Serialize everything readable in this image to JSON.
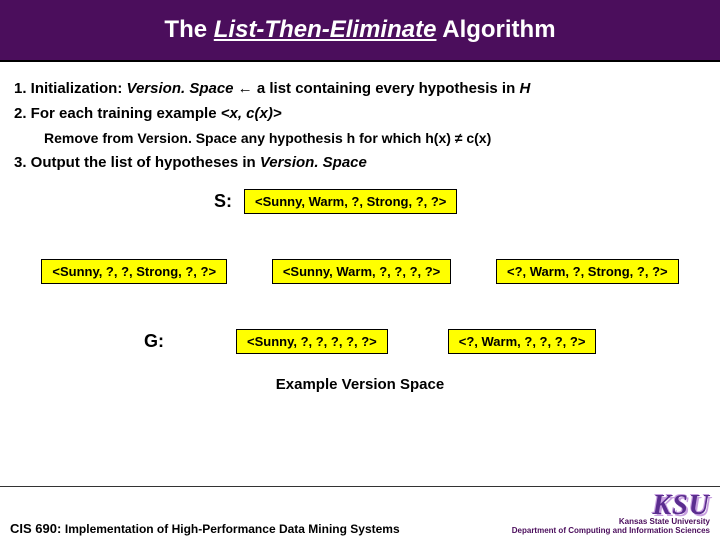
{
  "title": {
    "prefix": "The ",
    "underlined": "List-Then-Eliminate",
    "suffix": " Algorithm"
  },
  "steps": {
    "s1_label": "1. Initialization: ",
    "s1_vs": "Version. Space",
    "s1_arrow": " ← ",
    "s1_rest": "a list containing every hypothesis in ",
    "s1_h": "H",
    "s2_label": "2. For each training example ",
    "s2_tuple": "<x, c(x)>",
    "s2_sub_a": "Remove from ",
    "s2_sub_vs": "Version. Space",
    "s2_sub_b": " any hypothesis ",
    "s2_sub_h": "h",
    "s2_sub_c": " for which ",
    "s2_sub_d": "h(x) ≠ c(x)",
    "s3_label": "3. Output the list of hypotheses in ",
    "s3_vs": "Version. Space"
  },
  "labels": {
    "s": "S:",
    "g": "G:",
    "example": "Example Version Space"
  },
  "boxes": {
    "s_box": "<Sunny, Warm, ?, Strong, ?, ?>",
    "m1": "<Sunny, ?, ?, Strong, ?, ?>",
    "m2": "<Sunny, Warm, ?, ?, ?, ?>",
    "m3": "<?, Warm, ?, Strong, ?, ?>",
    "g1": "<Sunny, ?, ?, ?, ?, ?>",
    "g2": "<?, Warm, ?, ?, ?, ?>"
  },
  "footer": {
    "course": "CIS 690: ",
    "course_title": "Implementation of High-Performance Data Mining Systems",
    "logo": "KSU",
    "uni": "Kansas State University",
    "dept": "Department of Computing and Information Sciences"
  },
  "colors": {
    "title_bg": "#4b0e5c",
    "highlight": "#ffff00",
    "logo": "#5b2d8f"
  }
}
